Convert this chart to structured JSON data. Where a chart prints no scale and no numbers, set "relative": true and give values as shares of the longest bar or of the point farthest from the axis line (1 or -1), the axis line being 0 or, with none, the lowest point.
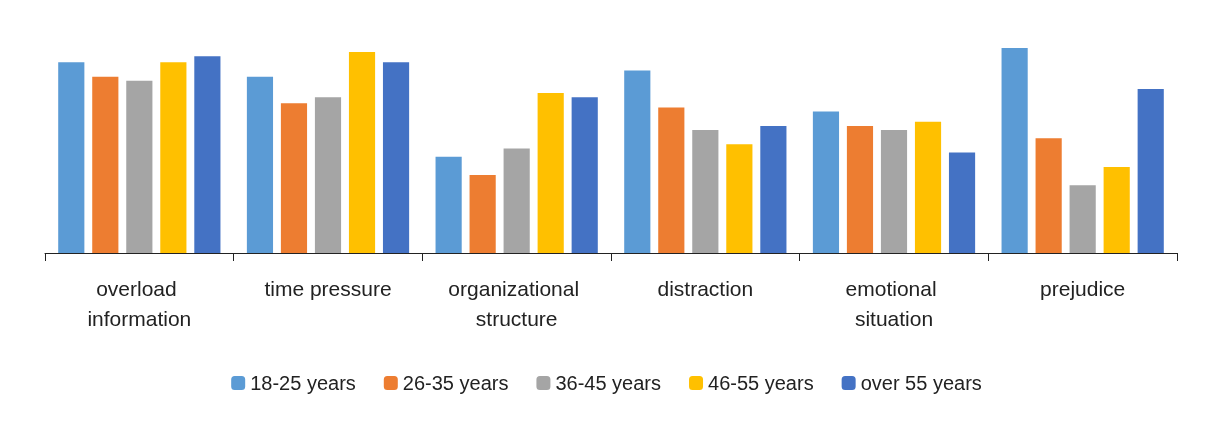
{
  "chart_data": {
    "type": "bar",
    "relative": true,
    "categories": [
      "overload information",
      "time pressure",
      "organizational structure",
      "distraction",
      "emotional situation",
      "prejudice"
    ],
    "series": [
      {
        "name": "18-25 years",
        "color": "#5b9bd5",
        "values": [
          0.93,
          0.86,
          0.47,
          0.89,
          0.69,
          1.0
        ]
      },
      {
        "name": "26-35 years",
        "color": "#ed7d31",
        "values": [
          0.86,
          0.73,
          0.38,
          0.71,
          0.62,
          0.56
        ]
      },
      {
        "name": "36-45 years",
        "color": "#a5a5a5",
        "values": [
          0.84,
          0.76,
          0.51,
          0.6,
          0.6,
          0.33
        ]
      },
      {
        "name": "46-55 years",
        "color": "#ffc000",
        "values": [
          0.93,
          0.98,
          0.78,
          0.53,
          0.64,
          0.42
        ]
      },
      {
        "name": "over 55 years",
        "color": "#4472c4",
        "values": [
          0.96,
          0.93,
          0.76,
          0.62,
          0.49,
          0.8
        ]
      }
    ],
    "legend": "bottom",
    "grid": false
  }
}
